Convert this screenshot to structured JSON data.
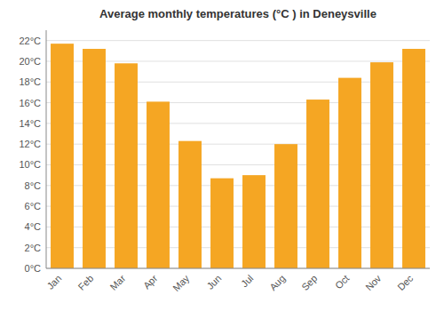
{
  "chart_data": {
    "type": "bar",
    "title": "Average monthly temperatures (°C ) in Deneysville",
    "categories": [
      "Jan",
      "Feb",
      "Mar",
      "Apr",
      "May",
      "Jun",
      "Jul",
      "Aug",
      "Sep",
      "Oct",
      "Nov",
      "Dec"
    ],
    "values": [
      21.7,
      21.2,
      19.8,
      16.1,
      12.3,
      8.7,
      9.0,
      12.0,
      16.3,
      18.4,
      19.9,
      21.2
    ],
    "color": "#F5A623",
    "ylim": [
      0,
      23
    ],
    "yticks": [
      {
        "value": 0,
        "label": "0°C"
      },
      {
        "value": 2,
        "label": "2°C"
      },
      {
        "value": 4,
        "label": "4°C"
      },
      {
        "value": 6,
        "label": "6°C"
      },
      {
        "value": 8,
        "label": "8°C"
      },
      {
        "value": 10,
        "label": "10°C"
      },
      {
        "value": 12,
        "label": "12°C"
      },
      {
        "value": 14,
        "label": "14°C"
      },
      {
        "value": 16,
        "label": "16°C"
      },
      {
        "value": 18,
        "label": "18°C"
      },
      {
        "value": 20,
        "label": "20°C"
      },
      {
        "value": 22,
        "label": "22°C"
      }
    ],
    "grid": true
  }
}
